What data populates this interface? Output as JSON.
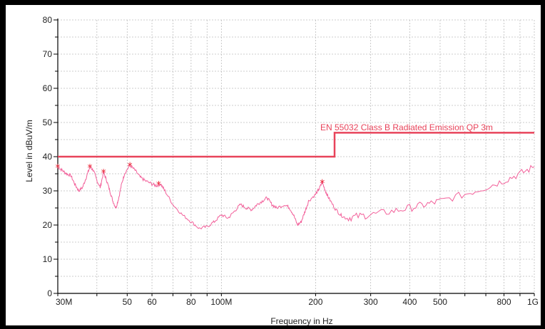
{
  "chart_data": {
    "type": "line",
    "xlabel": "Frequency in Hz",
    "ylabel": "Level in dBuV/m",
    "xscale": "log",
    "xlim": [
      30000000,
      1000000000
    ],
    "ylim": [
      0,
      80
    ],
    "grid": true,
    "x_ticks": [
      {
        "value": 30000000,
        "label": "30M"
      },
      {
        "value": 50000000,
        "label": "50"
      },
      {
        "value": 60000000,
        "label": "60"
      },
      {
        "value": 80000000,
        "label": "80"
      },
      {
        "value": 100000000,
        "label": "100M"
      },
      {
        "value": 200000000,
        "label": "200"
      },
      {
        "value": 300000000,
        "label": "300"
      },
      {
        "value": 400000000,
        "label": "400"
      },
      {
        "value": 500000000,
        "label": "500"
      },
      {
        "value": 800000000,
        "label": "800"
      },
      {
        "value": 1000000000,
        "label": "1G"
      }
    ],
    "y_ticks": [
      0,
      10,
      20,
      30,
      40,
      50,
      60,
      70,
      80
    ],
    "limit_line": {
      "name": "EN 55032 Class  B Radiated Emission  QP  3m",
      "color": "#e8435a",
      "points": [
        [
          30000000,
          40
        ],
        [
          230000000,
          40
        ],
        [
          230000000,
          47
        ],
        [
          1000000000,
          47
        ]
      ]
    },
    "series": [
      {
        "color": "#f2609a",
        "points": [
          [
            30000000,
            37
          ],
          [
            31000000,
            36
          ],
          [
            32000000,
            35
          ],
          [
            33000000,
            34.5
          ],
          [
            34000000,
            32
          ],
          [
            35000000,
            30
          ],
          [
            36000000,
            31
          ],
          [
            37000000,
            34
          ],
          [
            38000000,
            37
          ],
          [
            39000000,
            36
          ],
          [
            40000000,
            33
          ],
          [
            41000000,
            31
          ],
          [
            42000000,
            35.5
          ],
          [
            43000000,
            33
          ],
          [
            44000000,
            30
          ],
          [
            45000000,
            27
          ],
          [
            46000000,
            25
          ],
          [
            47000000,
            28
          ],
          [
            48000000,
            32
          ],
          [
            49000000,
            35
          ],
          [
            51000000,
            37.5
          ],
          [
            53000000,
            36
          ],
          [
            55000000,
            34
          ],
          [
            57000000,
            33
          ],
          [
            60000000,
            32
          ],
          [
            62000000,
            31.5
          ],
          [
            64000000,
            32
          ],
          [
            66000000,
            30
          ],
          [
            70000000,
            26
          ],
          [
            75000000,
            23
          ],
          [
            80000000,
            21
          ],
          [
            85000000,
            19
          ],
          [
            90000000,
            19.5
          ],
          [
            95000000,
            21
          ],
          [
            100000000,
            23
          ],
          [
            105000000,
            22
          ],
          [
            110000000,
            24
          ],
          [
            115000000,
            26
          ],
          [
            120000000,
            25
          ],
          [
            125000000,
            24.5
          ],
          [
            130000000,
            26
          ],
          [
            135000000,
            27
          ],
          [
            140000000,
            28
          ],
          [
            145000000,
            26
          ],
          [
            150000000,
            25
          ],
          [
            160000000,
            26
          ],
          [
            165000000,
            25
          ],
          [
            170000000,
            23
          ],
          [
            175000000,
            20
          ],
          [
            180000000,
            21
          ],
          [
            185000000,
            24
          ],
          [
            190000000,
            27
          ],
          [
            200000000,
            29
          ],
          [
            205000000,
            30.5
          ],
          [
            210000000,
            32.5
          ],
          [
            215000000,
            30
          ],
          [
            220000000,
            28
          ],
          [
            230000000,
            25
          ],
          [
            240000000,
            23
          ],
          [
            250000000,
            22
          ],
          [
            270000000,
            22.5
          ],
          [
            300000000,
            23
          ],
          [
            350000000,
            24
          ],
          [
            400000000,
            25
          ],
          [
            450000000,
            26
          ],
          [
            500000000,
            27
          ],
          [
            600000000,
            29
          ],
          [
            700000000,
            31
          ],
          [
            800000000,
            33
          ],
          [
            900000000,
            35
          ],
          [
            1000000000,
            37
          ]
        ]
      }
    ],
    "peak_markers": [
      [
        30000000,
        37
      ],
      [
        38000000,
        37
      ],
      [
        42000000,
        35.5
      ],
      [
        51000000,
        37.5
      ],
      [
        63000000,
        32
      ],
      [
        210000000,
        32.5
      ]
    ]
  }
}
